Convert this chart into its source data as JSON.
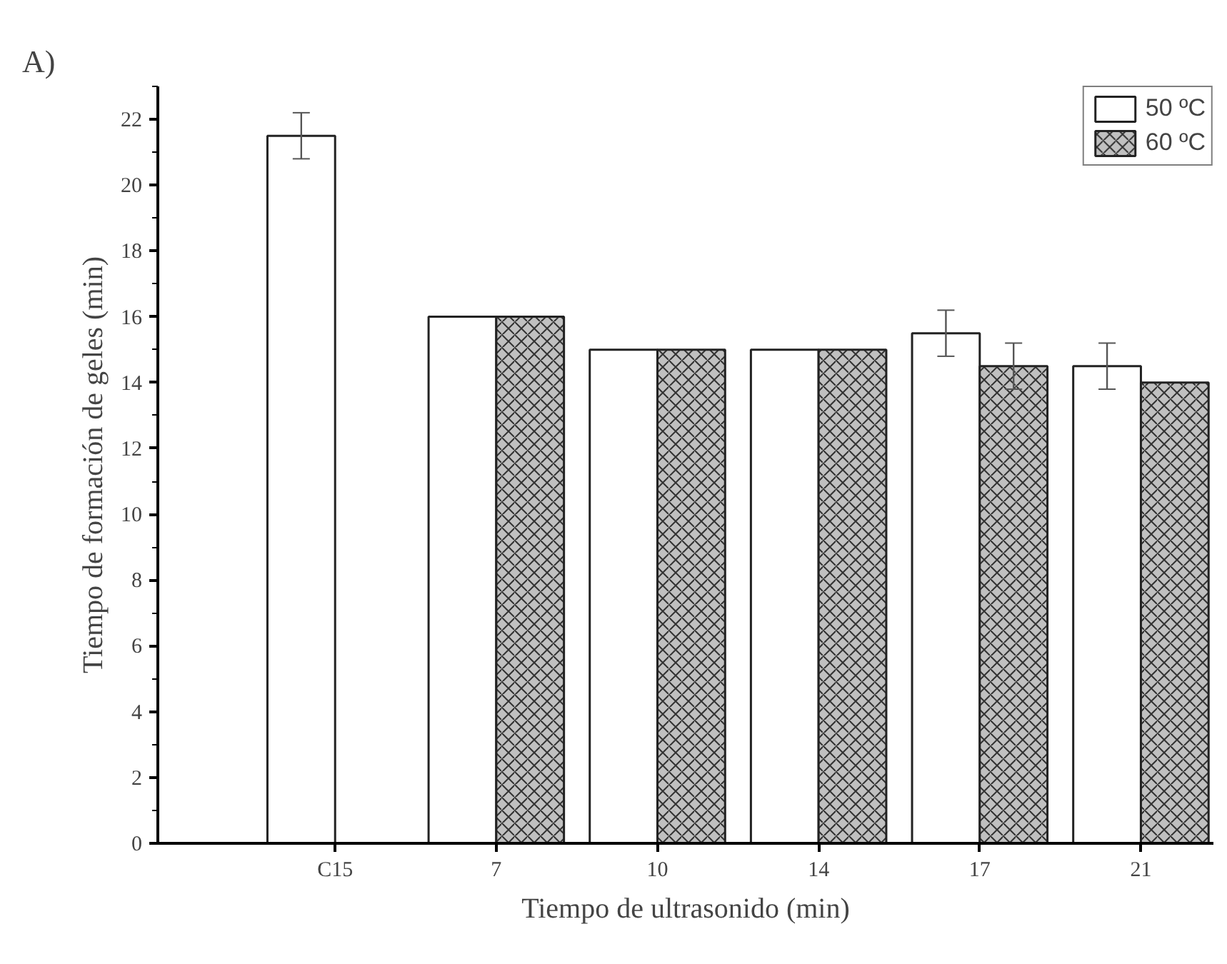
{
  "chart_data": {
    "type": "bar",
    "xlabel": "Tiempo de ultrasonido (min)",
    "ylabel": "Tiempo de formación de geles (min)",
    "annotations": [
      "A)"
    ],
    "categories": [
      "C15",
      "7",
      "10",
      "14",
      "17",
      "21"
    ],
    "series": [
      {
        "name": "50 ºC",
        "color": "#ffffff",
        "values": [
          21.5,
          16,
          15,
          15,
          15.5,
          14.5
        ],
        "errors": [
          0.7,
          null,
          null,
          null,
          0.7,
          0.7
        ]
      },
      {
        "name": "60 ºC",
        "color": "#c0c0c0",
        "values": [
          null,
          16,
          15,
          15,
          14.5,
          14
        ],
        "errors": [
          null,
          null,
          null,
          null,
          0.7,
          null
        ]
      }
    ],
    "ylim": [
      0,
      23
    ],
    "yticks": [
      0,
      2,
      4,
      6,
      8,
      10,
      12,
      14,
      16,
      18,
      20,
      22
    ],
    "grid": false,
    "legend": "top right"
  }
}
